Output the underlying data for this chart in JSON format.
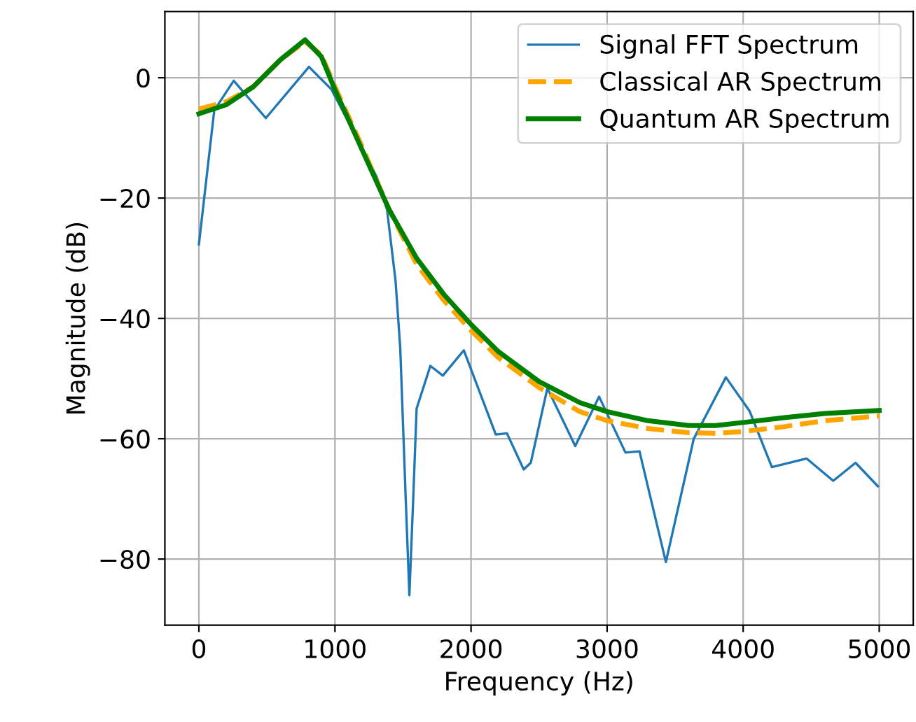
{
  "chart_data": {
    "type": "line",
    "xlabel": "Frequency (Hz)",
    "ylabel": "Magnitude (dB)",
    "xlim": [
      -250,
      5250
    ],
    "xticks": [
      0,
      1000,
      2000,
      3000,
      4000,
      5000
    ],
    "ylim": [
      -91,
      11
    ],
    "yticks": [
      {
        "value": -80,
        "label": "−80"
      },
      {
        "value": -60,
        "label": "−60"
      },
      {
        "value": -40,
        "label": "−40"
      },
      {
        "value": -20,
        "label": "−20"
      },
      0
    ],
    "grid": true,
    "legend": "top right",
    "series": [
      {
        "name": "Signal FFT Spectrum",
        "color": "#1f77b4",
        "line_style": "solid",
        "x": [
          0,
          113,
          256,
          492,
          809,
          973,
          1189,
          1311,
          1383,
          1445,
          1480,
          1520,
          1547,
          1575,
          1600,
          1701,
          1793,
          1947,
          2182,
          2264,
          2387,
          2439,
          2561,
          2766,
          2941,
          3135,
          3238,
          3432,
          3637,
          3873,
          4047,
          4211,
          4467,
          4662,
          4826,
          4990
        ],
        "values": [
          -27.7,
          -5.4,
          -0.5,
          -6.7,
          1.8,
          -1.9,
          -11.2,
          -16.7,
          -22,
          -33.7,
          -45,
          -70,
          -86,
          -70,
          -55,
          -47.9,
          -49.5,
          -45.3,
          -59.3,
          -59.1,
          -65.1,
          -64,
          -51.6,
          -61.2,
          -53,
          -62.3,
          -62.1,
          -80.5,
          -60,
          -49.8,
          -55.4,
          -64.7,
          -63.3,
          -67,
          -64,
          -67.9
        ]
      },
      {
        "name": "Classical AR Spectrum",
        "color": "#ffa500",
        "line_style": "dashed",
        "x": [
          0,
          200,
          400,
          600,
          780,
          900,
          1000,
          1200,
          1400,
          1600,
          1800,
          2000,
          2200,
          2500,
          2800,
          3000,
          3300,
          3600,
          3800,
          4000,
          4300,
          4600,
          5000
        ],
        "values": [
          -5.2,
          -4,
          -1.5,
          3,
          6,
          3.8,
          -1.5,
          -11.5,
          -22,
          -31,
          -37,
          -42,
          -46.5,
          -51.5,
          -55.5,
          -57,
          -58.3,
          -59,
          -59.1,
          -58.8,
          -58,
          -57,
          -56.2
        ]
      },
      {
        "name": "Quantum AR Spectrum",
        "color": "#008000",
        "line_style": "solid",
        "x": [
          0,
          200,
          400,
          600,
          780,
          900,
          1000,
          1200,
          1400,
          1600,
          1800,
          2000,
          2200,
          2500,
          2800,
          3000,
          3300,
          3600,
          3800,
          4000,
          4300,
          4600,
          5000
        ],
        "values": [
          -6,
          -4.5,
          -1.5,
          3,
          6.3,
          3.5,
          -2,
          -12,
          -22,
          -30,
          -36,
          -41,
          -45.5,
          -50.5,
          -54,
          -55.5,
          -57,
          -57.8,
          -57.8,
          -57.3,
          -56.5,
          -55.8,
          -55.3
        ]
      }
    ]
  }
}
